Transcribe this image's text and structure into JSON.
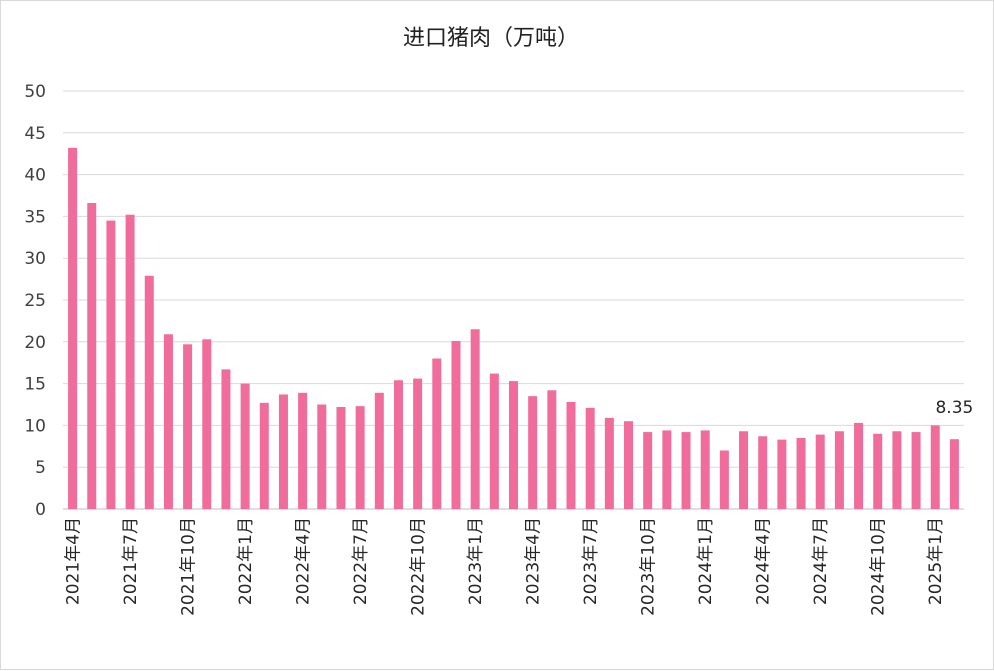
{
  "chart_data": {
    "type": "bar",
    "title": "进口猪肉（万吨）",
    "xlabel": "",
    "ylabel": "",
    "ylim": [
      0,
      50
    ],
    "yticks": [
      0,
      5,
      10,
      15,
      20,
      25,
      30,
      35,
      40,
      45,
      50
    ],
    "grid": true,
    "legend": "none",
    "bar_color": "#f06c9b",
    "categories": [
      "2021年4月",
      "2021年5月",
      "2021年6月",
      "2021年7月",
      "2021年8月",
      "2021年9月",
      "2021年10月",
      "2021年11月",
      "2021年12月",
      "2022年1月",
      "2022年2月",
      "2022年3月",
      "2022年4月",
      "2022年5月",
      "2022年6月",
      "2022年7月",
      "2022年8月",
      "2022年9月",
      "2022年10月",
      "2022年11月",
      "2022年12月",
      "2023年1月",
      "2023年2月",
      "2023年3月",
      "2023年4月",
      "2023年5月",
      "2023年6月",
      "2023年7月",
      "2023年8月",
      "2023年9月",
      "2023年10月",
      "2023年11月",
      "2023年12月",
      "2024年1月",
      "2024年2月",
      "2024年3月",
      "2024年4月",
      "2024年5月",
      "2024年6月",
      "2024年7月",
      "2024年8月",
      "2024年9月",
      "2024年10月",
      "2024年11月",
      "2024年12月",
      "2025年1月",
      "2025年2月"
    ],
    "visible_tick_labels": [
      "2021年4月",
      "2021年7月",
      "2021年10月",
      "2022年1月",
      "2022年4月",
      "2022年7月",
      "2022年10月",
      "2023年1月",
      "2023年4月",
      "2023年7月",
      "2023年10月",
      "2024年1月",
      "2024年4月",
      "2024年7月",
      "2024年10月",
      "2025年1月"
    ],
    "values": [
      43.2,
      36.6,
      34.5,
      35.2,
      27.9,
      20.9,
      19.7,
      20.3,
      16.7,
      15.0,
      12.7,
      13.7,
      13.9,
      12.5,
      12.2,
      12.3,
      13.9,
      15.4,
      15.6,
      18.0,
      20.1,
      21.5,
      16.2,
      15.3,
      13.5,
      14.2,
      12.8,
      12.1,
      10.9,
      10.5,
      9.2,
      9.4,
      9.2,
      9.4,
      7.0,
      9.3,
      8.7,
      8.3,
      8.5,
      8.9,
      9.3,
      10.3,
      9.0,
      9.3,
      9.2,
      10.0,
      8.35
    ],
    "data_labels": [
      {
        "category": "2025年2月",
        "text": "8.35"
      }
    ]
  }
}
